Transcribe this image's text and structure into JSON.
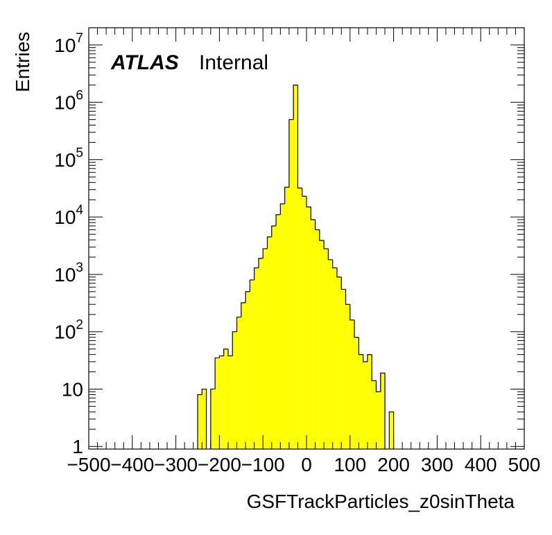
{
  "label": {
    "experiment": "ATLAS",
    "status": "Internal"
  },
  "chart_data": {
    "type": "bar",
    "subtype": "histogram",
    "title": "",
    "xlabel": "GSFTrackParticles_z0sinTheta",
    "ylabel": "Entries",
    "xlim": [
      -500,
      500
    ],
    "ylim": [
      0.9,
      20000000
    ],
    "yscale": "log",
    "bin_width": 10,
    "x_ticks": [
      -500,
      -400,
      -300,
      -200,
      -100,
      0,
      100,
      200,
      300,
      400,
      500
    ],
    "x_tick_labels": [
      "−500",
      "−400",
      "−300",
      "−200",
      "−100",
      "0",
      "100",
      "200",
      "300",
      "400",
      "500"
    ],
    "y_ticks": [
      {
        "value": 1,
        "base": "1",
        "exp": ""
      },
      {
        "value": 10,
        "base": "10",
        "exp": ""
      },
      {
        "value": 100,
        "base": "10",
        "exp": "2"
      },
      {
        "value": 1000,
        "base": "10",
        "exp": "3"
      },
      {
        "value": 10000,
        "base": "10",
        "exp": "4"
      },
      {
        "value": 100000,
        "base": "10",
        "exp": "5"
      },
      {
        "value": 1000000,
        "base": "10",
        "exp": "6"
      },
      {
        "value": 10000000,
        "base": "10",
        "exp": "7"
      }
    ],
    "fill_color": "#ffff00",
    "line_color": "#000000",
    "grid": false,
    "bin_edges_start": -500,
    "values": [
      0,
      0,
      0,
      0,
      0,
      0,
      0,
      0,
      0,
      0,
      0,
      0,
      0,
      0,
      0,
      0,
      0,
      0,
      0,
      0,
      0,
      0,
      0,
      0,
      0,
      8,
      10,
      0,
      10,
      35,
      38,
      50,
      38,
      100,
      180,
      320,
      500,
      800,
      1300,
      1900,
      2800,
      4500,
      7000,
      11000,
      17000,
      33000,
      500000,
      2000000,
      32000,
      23000,
      15000,
      9000,
      6000,
      3900,
      2800,
      1800,
      1300,
      900,
      550,
      300,
      160,
      80,
      40,
      30,
      40,
      14,
      9,
      19,
      0,
      4,
      0,
      0,
      0,
      0,
      0,
      0,
      0,
      0,
      0,
      0,
      0,
      0,
      0,
      0,
      0,
      0,
      0,
      0,
      0,
      0,
      0,
      0,
      0,
      0,
      0,
      0,
      0,
      0,
      0,
      0
    ]
  }
}
